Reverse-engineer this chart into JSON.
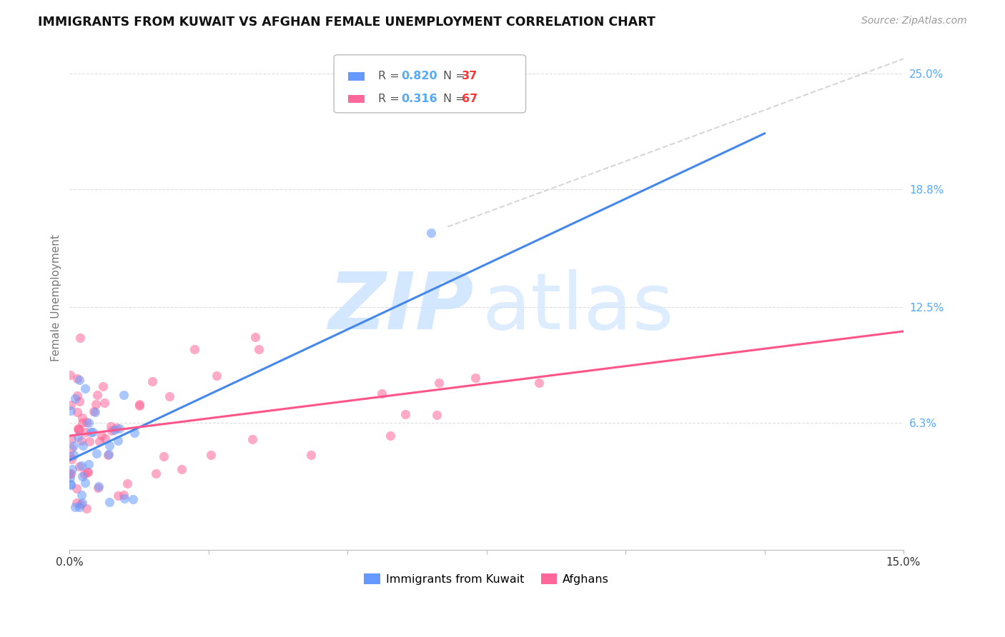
{
  "title": "IMMIGRANTS FROM KUWAIT VS AFGHAN FEMALE UNEMPLOYMENT CORRELATION CHART",
  "source": "Source: ZipAtlas.com",
  "ylabel": "Female Unemployment",
  "ylabel_ticks": [
    "25.0%",
    "18.8%",
    "12.5%",
    "6.3%"
  ],
  "ylabel_vals": [
    0.25,
    0.188,
    0.125,
    0.063
  ],
  "xlim": [
    0.0,
    0.15
  ],
  "ylim": [
    -0.005,
    0.265
  ],
  "blue_color": "#6699ff",
  "pink_color": "#ff6699",
  "blue_line_color": "#4488ee",
  "pink_line_color": "#ff5588",
  "dashed_line_color": "#cccccc",
  "right_tick_color": "#55aaff",
  "legend_text_color": "#555555",
  "legend_blue_val_color": "#55aaff",
  "legend_pink_val_color": "#55aaff",
  "legend_N_color": "#ff3333",
  "watermark_color_zip": "#cce4ff",
  "watermark_color_atlas": "#cce4ff",
  "blue_line_x0": 0.0,
  "blue_line_y0": 0.043,
  "blue_line_x1": 0.125,
  "blue_line_y1": 0.218,
  "pink_line_x0": 0.0,
  "pink_line_y0": 0.056,
  "pink_line_x1": 0.15,
  "pink_line_y1": 0.112,
  "dash_line_x0": 0.068,
  "dash_line_y0": 0.168,
  "dash_line_x1": 0.15,
  "dash_line_y1": 0.258
}
